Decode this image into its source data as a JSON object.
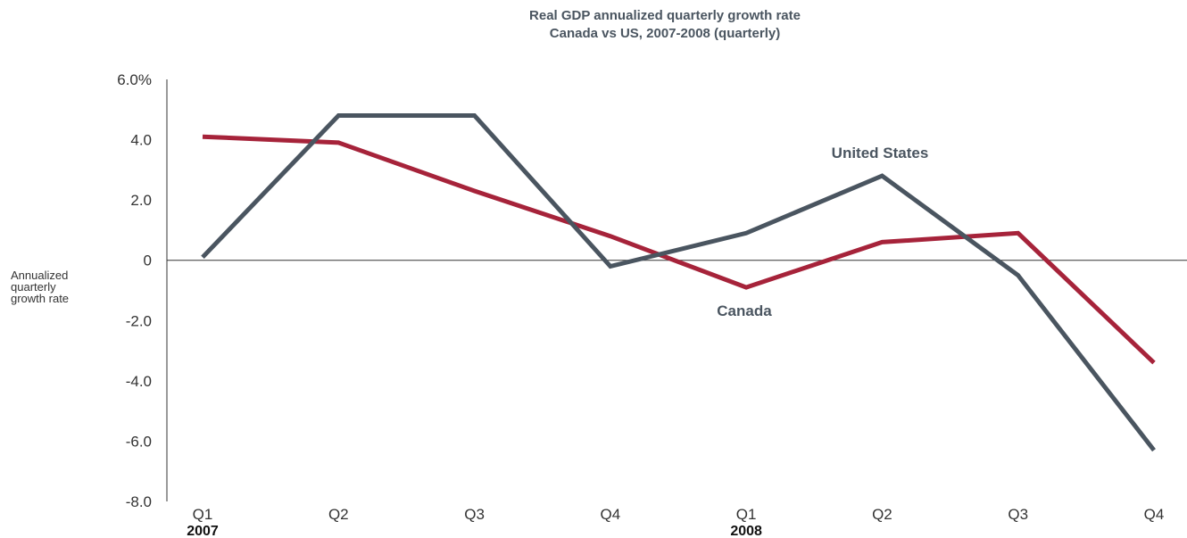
{
  "chart_data": {
    "type": "line",
    "title": "Real GDP annualized quarterly growth rate",
    "subtitle": "Canada vs US, 2007-2008 (quarterly)",
    "ylabel": [
      "Annualized",
      "quarterly",
      "growth rate"
    ],
    "xlabel": "",
    "categories": [
      "Q1",
      "Q2",
      "Q3",
      "Q4",
      "Q1",
      "Q2",
      "Q3",
      "Q4"
    ],
    "years": [
      {
        "label": "2007",
        "index": 0
      },
      {
        "label": "2008",
        "index": 4
      }
    ],
    "ylim": [
      -8,
      6
    ],
    "yticks": [
      {
        "value": 6,
        "label": "6.0%"
      },
      {
        "value": 4,
        "label": "4.0"
      },
      {
        "value": 2,
        "label": "2.0"
      },
      {
        "value": 0,
        "label": "0"
      },
      {
        "value": -2,
        "label": "-2.0"
      },
      {
        "value": -4,
        "label": "-4.0"
      },
      {
        "value": -6,
        "label": "-6.0"
      },
      {
        "value": -8,
        "label": "-8.0"
      }
    ],
    "grid": false,
    "series": [
      {
        "name": "United States",
        "color": "#4a5560",
        "values": [
          0.1,
          4.8,
          4.8,
          -0.2,
          0.9,
          2.8,
          -0.5,
          -6.3
        ]
      },
      {
        "name": "Canada",
        "color": "#a6233a",
        "values": [
          4.1,
          3.9,
          2.3,
          0.8,
          -0.9,
          0.6,
          0.9,
          -3.4
        ]
      }
    ]
  }
}
